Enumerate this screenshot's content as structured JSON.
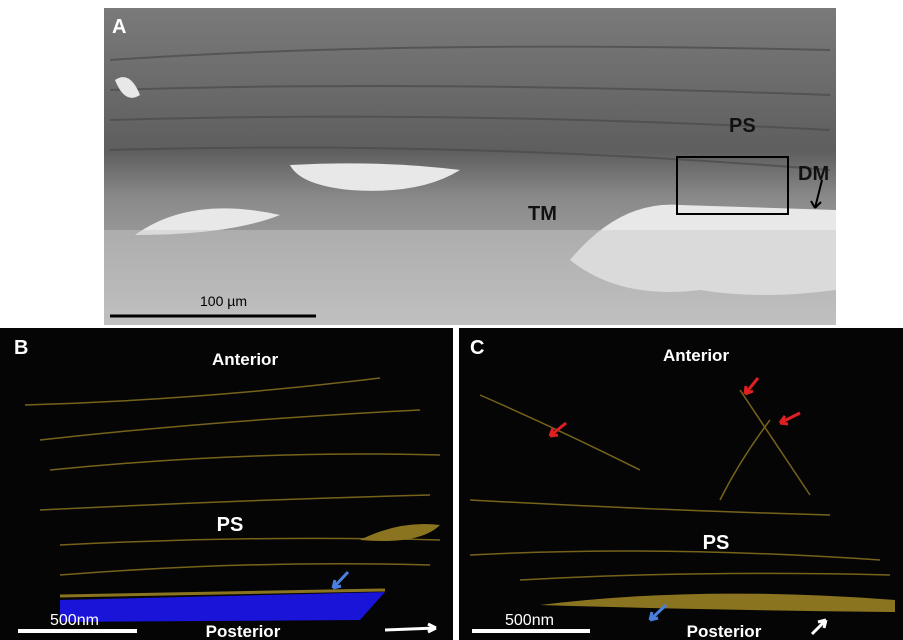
{
  "panels": [
    {
      "label": "A",
      "annotations": [
        "PS",
        "DM",
        "TM"
      ],
      "scale_bar": "100 µm"
    },
    {
      "label": "B",
      "top": "Anterior",
      "center": "PS",
      "scale_bar": "500nm",
      "bottom": "Posterior"
    },
    {
      "label": "C",
      "top": "Anterior",
      "center": "PS",
      "scale_bar": "500nm",
      "bottom": "Posterior"
    }
  ]
}
